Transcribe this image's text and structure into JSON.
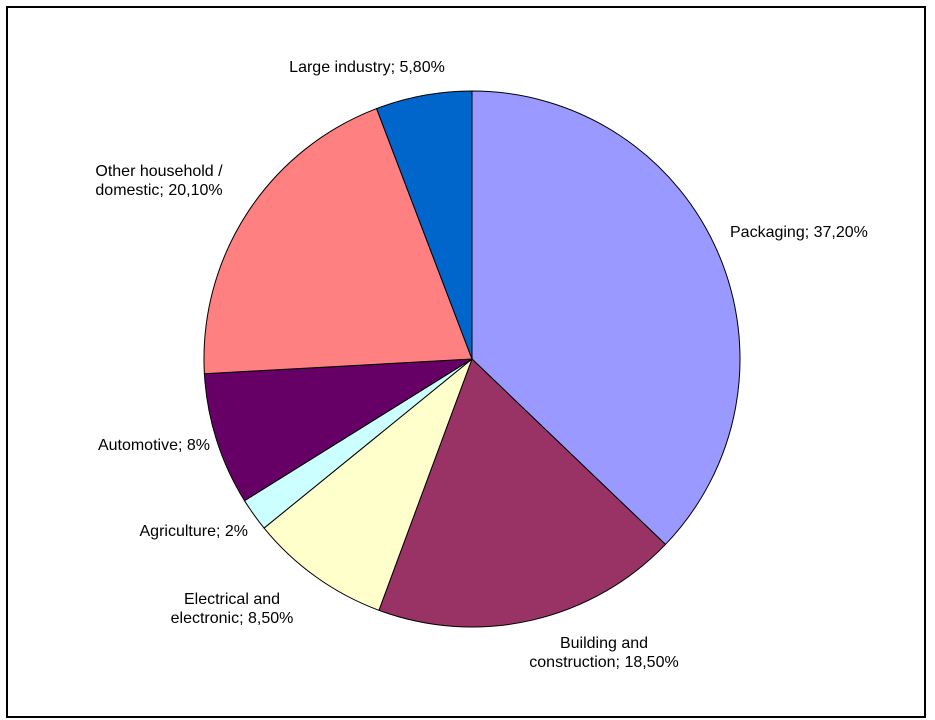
{
  "chart_data": {
    "type": "pie",
    "title": "",
    "legend": false,
    "start_angle_deg": 0,
    "direction": "clockwise",
    "slices": [
      {
        "name": "Packaging",
        "value": 37.2,
        "label_lines": [
          "Packaging; 37,20%"
        ],
        "color": "#9999FF"
      },
      {
        "name": "Building and construction",
        "value": 18.5,
        "label_lines": [
          "Building and",
          "construction; 18,50%"
        ],
        "color": "#993366"
      },
      {
        "name": "Electrical and electronic",
        "value": 8.5,
        "label_lines": [
          "Electrical and",
          "electronic; 8,50%"
        ],
        "color": "#FFFFCC"
      },
      {
        "name": "Agriculture",
        "value": 2,
        "label_lines": [
          "Agriculture; 2%"
        ],
        "color": "#CCFFFF"
      },
      {
        "name": "Automotive",
        "value": 8,
        "label_lines": [
          "Automotive; 8%"
        ],
        "color": "#660066"
      },
      {
        "name": "Other household / domestic",
        "value": 20.1,
        "label_lines": [
          "Other household /",
          "domestic; 20,10%"
        ],
        "color": "#FF8080"
      },
      {
        "name": "Large industry",
        "value": 5.8,
        "label_lines": [
          "Large industry; 5,80%"
        ],
        "color": "#0066CC"
      }
    ]
  }
}
